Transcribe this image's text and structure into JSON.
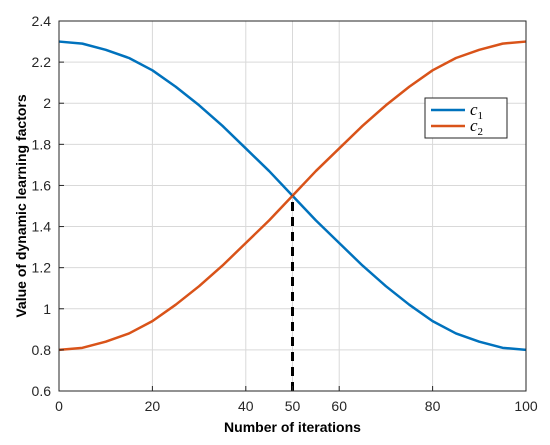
{
  "chart_data": {
    "type": "line",
    "xlabel": "Number of iterations",
    "ylabel": "Value of dynamic learning factors",
    "xlim": [
      0,
      100
    ],
    "ylim": [
      0.6,
      2.4
    ],
    "xticks": [
      "0",
      "20",
      "40",
      "50",
      "60",
      "80",
      "100"
    ],
    "yticks": [
      "0.6",
      "0.8",
      "1",
      "1.2",
      "1.4",
      "1.6",
      "1.8",
      "2",
      "2.2",
      "2.4"
    ],
    "grid": true,
    "legend_position": "upper-right",
    "series": [
      {
        "name": "c1",
        "color": "#0072BD",
        "x": [
          0,
          5,
          10,
          15,
          20,
          25,
          30,
          35,
          40,
          45,
          50,
          55,
          60,
          65,
          70,
          75,
          80,
          85,
          90,
          95,
          100
        ],
        "y": [
          2.3,
          2.29,
          2.26,
          2.22,
          2.16,
          2.08,
          1.99,
          1.89,
          1.78,
          1.67,
          1.55,
          1.43,
          1.32,
          1.21,
          1.11,
          1.02,
          0.94,
          0.88,
          0.84,
          0.81,
          0.8
        ]
      },
      {
        "name": "c2",
        "color": "#D95319",
        "x": [
          0,
          5,
          10,
          15,
          20,
          25,
          30,
          35,
          40,
          45,
          50,
          55,
          60,
          65,
          70,
          75,
          80,
          85,
          90,
          95,
          100
        ],
        "y": [
          0.8,
          0.81,
          0.84,
          0.88,
          0.94,
          1.02,
          1.11,
          1.21,
          1.32,
          1.43,
          1.55,
          1.67,
          1.78,
          1.89,
          1.99,
          2.08,
          2.16,
          2.22,
          2.26,
          2.29,
          2.3
        ]
      }
    ],
    "annotations": [
      {
        "type": "dashed-vertical",
        "x": 50,
        "y_from": 0.6,
        "y_to": 1.55,
        "color": "#000000"
      }
    ]
  }
}
